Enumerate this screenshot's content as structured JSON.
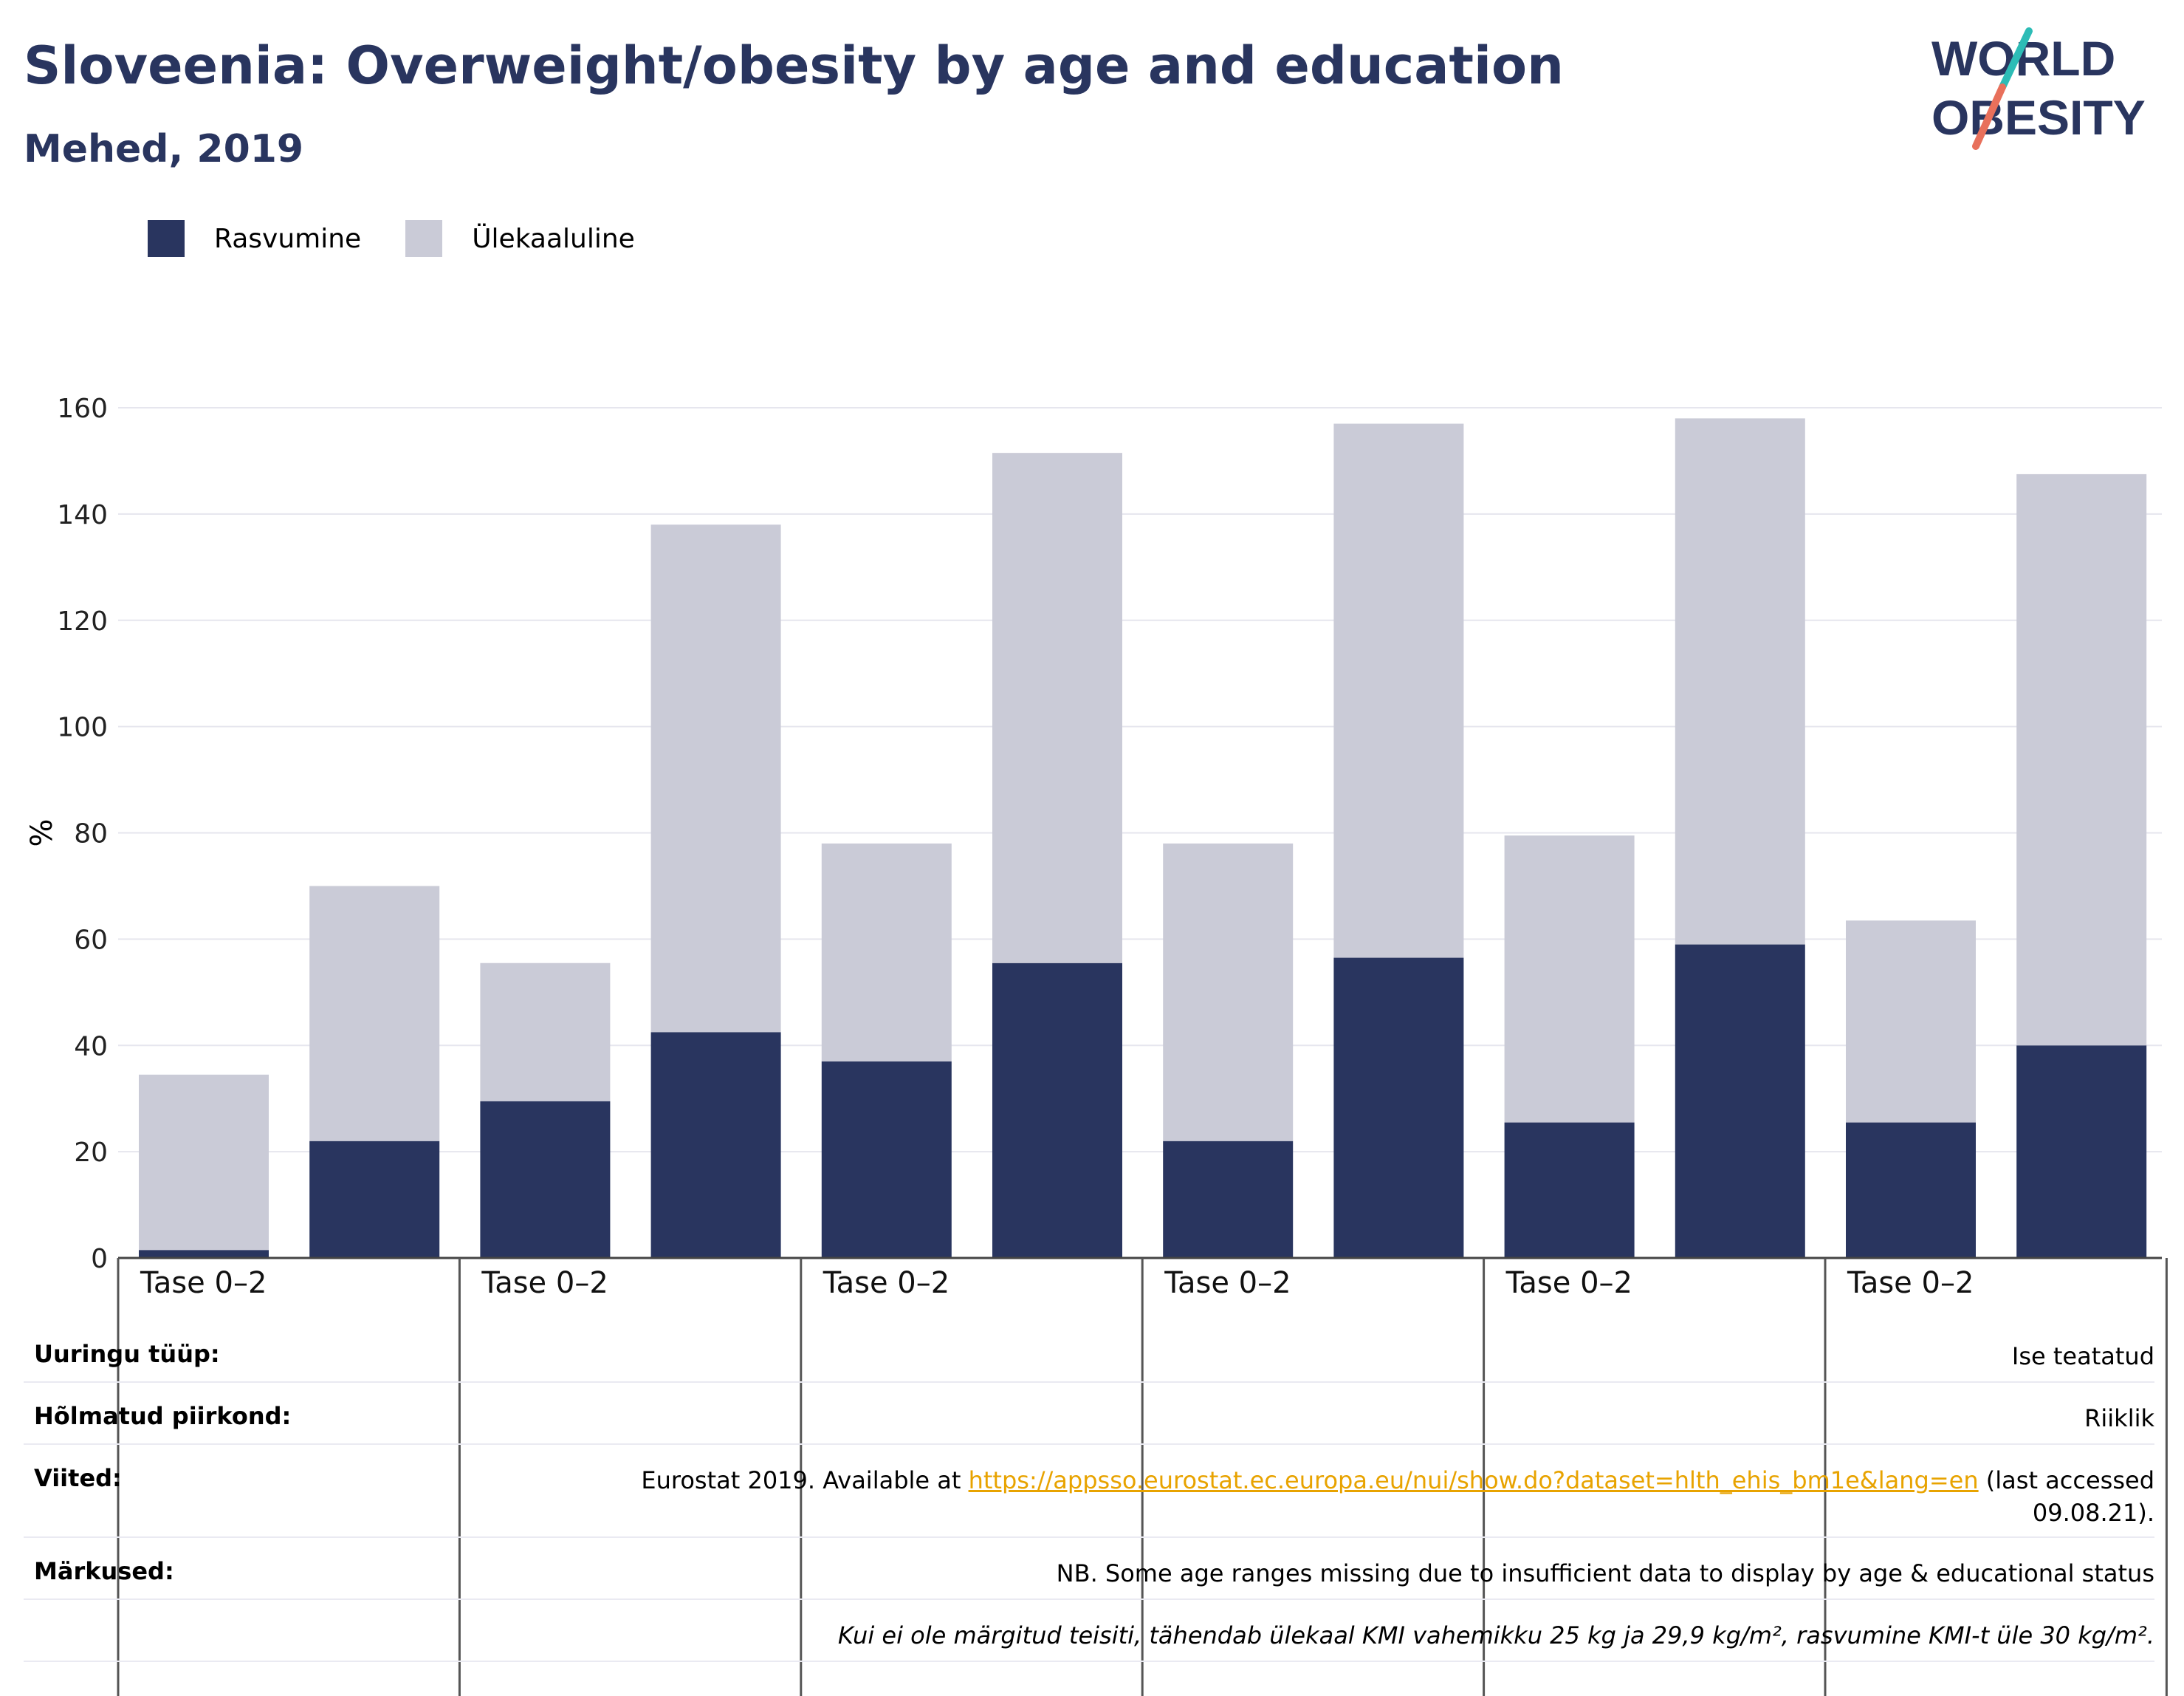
{
  "header": {
    "title": "Sloveenia: Overweight/obesity by age and education",
    "subtitle": "Mehed, 2019"
  },
  "logo": {
    "line1": "WORLD",
    "line2": "OBESITY"
  },
  "legend": [
    {
      "label": "Rasvumine",
      "color": "#29355f"
    },
    {
      "label": "Ülekaaluline",
      "color": "#cacbd7"
    }
  ],
  "chart_data": {
    "type": "bar",
    "stacked": true,
    "ylabel": "%",
    "ylim": [
      0,
      160
    ],
    "yticks": [
      0,
      20,
      40,
      60,
      80,
      100,
      120,
      140,
      160
    ],
    "grid": true,
    "legend_position": "top-left",
    "group_labels": [
      "Tase 0–2",
      "Tase 0–2",
      "Tase 0–2",
      "Tase 0–2",
      "Tase 0–2",
      "Tase 0–2"
    ],
    "series": [
      {
        "name": "Rasvumine",
        "color": "#29355f",
        "values": [
          1.5,
          22,
          29.5,
          42.5,
          37,
          55.5,
          22,
          56.5,
          25.5,
          59,
          25.5,
          40
        ]
      },
      {
        "name": "Ülekaaluline",
        "color": "#cacbd7",
        "values": [
          33,
          48,
          26,
          95.5,
          41,
          96,
          56,
          100.5,
          54,
          99,
          38,
          107.5
        ]
      }
    ]
  },
  "info_table": {
    "rows": [
      {
        "label": "Uuringu tüüp:",
        "value": "Ise teatatud"
      },
      {
        "label": "Hõlmatud piirkond:",
        "value": "Riiklik"
      },
      {
        "label": "Viited:",
        "value_prefix": "Eurostat 2019. Available at ",
        "link": "https://appsso.eurostat.ec.europa.eu/nui/show.do?dataset=hlth_ehis_bm1e&lang=en",
        "value_suffix": " (last accessed",
        "value_line2": "09.08.21)."
      },
      {
        "label": "Märkused:",
        "value": "NB. Some age ranges missing due to insufficient data to display by age & educational status"
      },
      {
        "label": "",
        "value": "Kui ei ole märgitud teisiti, tähendab ülekaal KMI vahemikku 25 kg ja 29,9 kg/m², rasvumine KMI-t üle 30 kg/m²."
      }
    ]
  }
}
